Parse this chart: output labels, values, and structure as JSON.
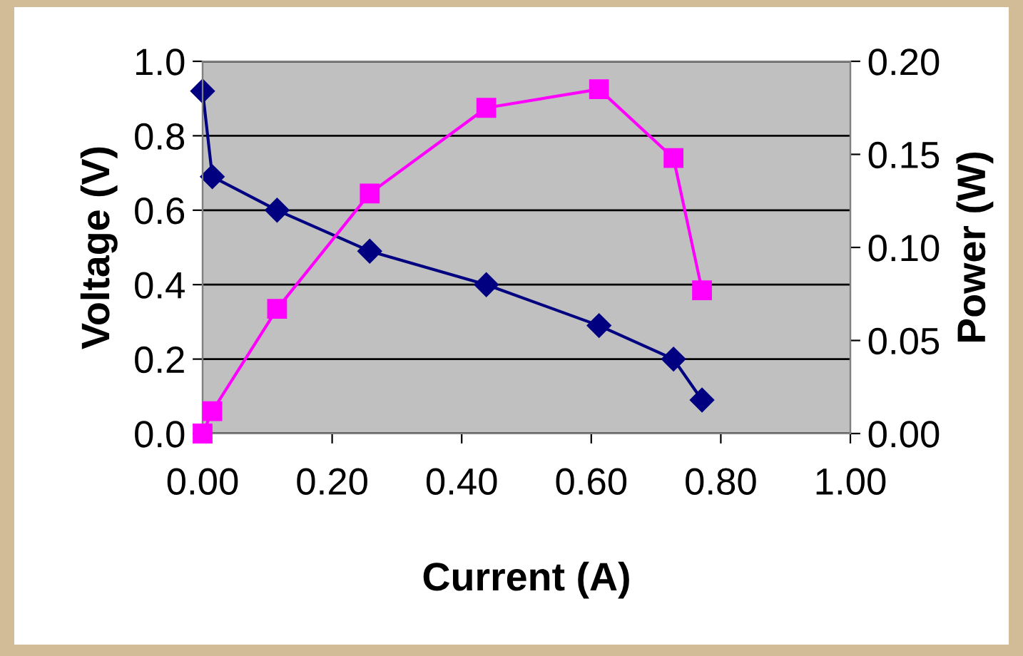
{
  "chart_data": {
    "type": "line",
    "xlabel": "Current (A)",
    "ylabel": "Voltage (V)",
    "y2label": "Power (W)",
    "xlim": [
      0,
      1
    ],
    "xticks": [
      {
        "value": 0,
        "label": "0.00"
      },
      {
        "value": 0.2,
        "label": "0.20"
      },
      {
        "value": 0.4,
        "label": "0.40"
      },
      {
        "value": 0.6,
        "label": "0.60"
      },
      {
        "value": 0.8,
        "label": "0.80"
      },
      {
        "value": 1,
        "label": "1.00"
      }
    ],
    "ylim": [
      0,
      1
    ],
    "yticks": [
      {
        "value": 0,
        "label": "0.0"
      },
      {
        "value": 0.2,
        "label": "0.2"
      },
      {
        "value": 0.4,
        "label": "0.4"
      },
      {
        "value": 0.6,
        "label": "0.6"
      },
      {
        "value": 0.8,
        "label": "0.8"
      },
      {
        "value": 1,
        "label": "1.0"
      }
    ],
    "y2lim": [
      0,
      0.2
    ],
    "y2ticks": [
      {
        "value": 0,
        "label": "0.00"
      },
      {
        "value": 0.05,
        "label": "0.05"
      },
      {
        "value": 0.1,
        "label": "0.10"
      },
      {
        "value": 0.15,
        "label": "0.15"
      },
      {
        "value": 0.2,
        "label": "0.20"
      }
    ],
    "grid": "y",
    "legend": false,
    "series": [
      {
        "color": "#000080",
        "marker": "diamond",
        "x": [
          0,
          0.015,
          0.115,
          0.258,
          0.438,
          0.612,
          0.727,
          0.771
        ],
        "values": [
          0.92,
          0.69,
          0.6,
          0.49,
          0.4,
          0.29,
          0.2,
          0.09
        ]
      },
      {
        "color": "#ff00ff",
        "marker": "square",
        "axis": "y2",
        "x": [
          0,
          0.015,
          0.115,
          0.258,
          0.438,
          0.612,
          0.727,
          0.771
        ],
        "values": [
          0,
          0.012,
          0.067,
          0.129,
          0.175,
          0.185,
          0.148,
          0.077
        ]
      }
    ]
  }
}
